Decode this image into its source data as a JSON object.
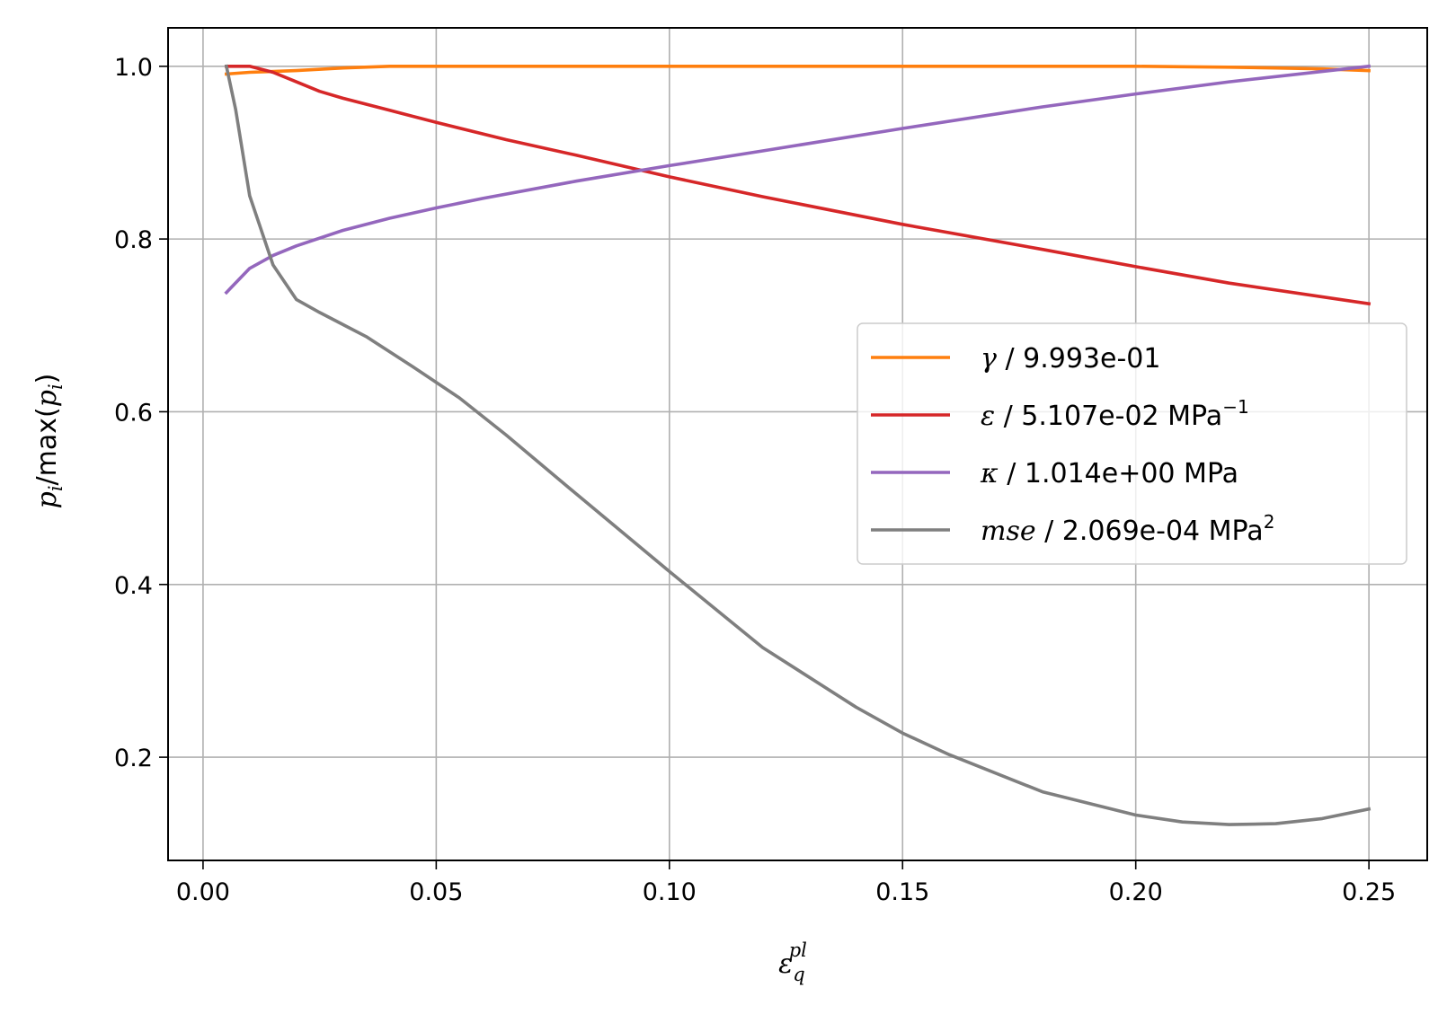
{
  "chart_data": {
    "type": "line",
    "xlabel": {
      "base": "ε",
      "sub": "q",
      "sup": "pl"
    },
    "ylabel": {
      "p": "p",
      "i": "i",
      "mid": "/max(",
      "close": ")"
    },
    "xlim": [
      -0.0075,
      0.2625
    ],
    "ylim": [
      0.0805,
      1.0445
    ],
    "xticks": [
      0.0,
      0.05,
      0.1,
      0.15,
      0.2,
      0.25
    ],
    "xtick_labels": [
      "0.00",
      "0.05",
      "0.10",
      "0.15",
      "0.20",
      "0.25"
    ],
    "yticks": [
      0.2,
      0.4,
      0.6,
      0.8,
      1.0
    ],
    "ytick_labels": [
      "0.2",
      "0.4",
      "0.6",
      "0.8",
      "1.0"
    ],
    "grid": true,
    "legend_position": "center-right",
    "series": [
      {
        "name": "γ / 9.993e-01",
        "legend": {
          "symbol": "γ",
          "text": " / 9.993e-01",
          "sup": ""
        },
        "color": "#ff7f0e",
        "x": [
          0.005,
          0.01,
          0.015,
          0.02,
          0.03,
          0.04,
          0.06,
          0.1,
          0.15,
          0.2,
          0.21,
          0.22,
          0.23,
          0.24,
          0.25
        ],
        "y": [
          0.991,
          0.993,
          0.994,
          0.995,
          0.998,
          1.0,
          1.0,
          1.0,
          1.0,
          1.0,
          0.9995,
          0.999,
          0.998,
          0.997,
          0.995
        ]
      },
      {
        "name": "ε / 5.107e-02 MPa⁻¹",
        "legend": {
          "symbol": "ε",
          "text": " / 5.107e-02 MPa",
          "sup": "−1"
        },
        "color": "#d62728",
        "x": [
          0.005,
          0.01,
          0.015,
          0.02,
          0.025,
          0.03,
          0.04,
          0.05,
          0.065,
          0.08,
          0.1,
          0.12,
          0.15,
          0.18,
          0.2,
          0.22,
          0.25
        ],
        "y": [
          1.0,
          1.0,
          0.993,
          0.982,
          0.971,
          0.963,
          0.949,
          0.935,
          0.915,
          0.897,
          0.872,
          0.849,
          0.817,
          0.788,
          0.768,
          0.749,
          0.725
        ]
      },
      {
        "name": "κ / 1.014e+00 MPa",
        "legend": {
          "symbol": "κ",
          "text": " / 1.014e+00 MPa",
          "sup": ""
        },
        "color": "#9467bd",
        "x": [
          0.005,
          0.01,
          0.015,
          0.02,
          0.03,
          0.04,
          0.05,
          0.06,
          0.08,
          0.1,
          0.12,
          0.15,
          0.18,
          0.2,
          0.22,
          0.25
        ],
        "y": [
          0.738,
          0.766,
          0.781,
          0.792,
          0.81,
          0.824,
          0.836,
          0.847,
          0.867,
          0.885,
          0.902,
          0.928,
          0.953,
          0.968,
          0.982,
          1.0
        ]
      },
      {
        "name": "mse / 2.069e-04 MPa²",
        "legend": {
          "symbol": "mse",
          "text": " / 2.069e-04 MPa",
          "sup": "2"
        },
        "color": "#7f7f7f",
        "x": [
          0.005,
          0.007,
          0.01,
          0.015,
          0.02,
          0.025,
          0.035,
          0.045,
          0.055,
          0.065,
          0.08,
          0.1,
          0.12,
          0.14,
          0.15,
          0.16,
          0.18,
          0.2,
          0.21,
          0.22,
          0.23,
          0.24,
          0.25
        ],
        "y": [
          1.0,
          0.95,
          0.85,
          0.77,
          0.73,
          0.715,
          0.687,
          0.652,
          0.616,
          0.573,
          0.505,
          0.415,
          0.327,
          0.258,
          0.228,
          0.203,
          0.16,
          0.133,
          0.125,
          0.122,
          0.123,
          0.129,
          0.14
        ]
      }
    ]
  }
}
